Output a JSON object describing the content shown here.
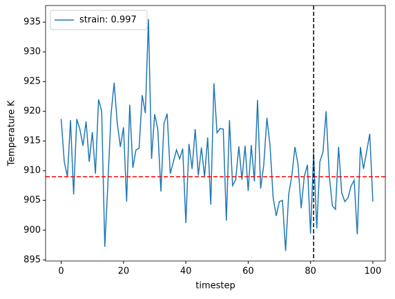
{
  "chart_data": {
    "type": "line",
    "x_label": "timestep",
    "y_label": "Temperature K",
    "x": [
      0,
      1,
      2,
      3,
      4,
      5,
      6,
      7,
      8,
      9,
      10,
      11,
      12,
      13,
      14,
      15,
      16,
      17,
      18,
      19,
      20,
      21,
      22,
      23,
      24,
      25,
      26,
      27,
      28,
      29,
      30,
      31,
      32,
      33,
      34,
      35,
      36,
      37,
      38,
      39,
      40,
      41,
      42,
      43,
      44,
      45,
      46,
      47,
      48,
      49,
      50,
      51,
      52,
      53,
      54,
      55,
      56,
      57,
      58,
      59,
      60,
      61,
      62,
      63,
      64,
      65,
      66,
      67,
      68,
      69,
      70,
      71,
      72,
      73,
      74,
      75,
      76,
      77,
      78,
      79,
      80,
      81,
      82,
      83,
      84,
      85,
      86,
      87,
      88,
      89,
      90,
      91,
      92,
      93,
      94,
      95,
      96,
      97,
      98,
      99,
      100
    ],
    "series": [
      {
        "name": "strain: 0.997",
        "color": "#1f77b4",
        "values": [
          918.7,
          911.5,
          909,
          918.5,
          906,
          918.7,
          917,
          914.2,
          918.3,
          911.5,
          916.5,
          909.5,
          922,
          920,
          897.2,
          908,
          919.5,
          924.8,
          918,
          914,
          917.3,
          904.8,
          921.1,
          910.5,
          913.5,
          913.8,
          922.7,
          919.7,
          935.5,
          912,
          919.5,
          917,
          906.5,
          918,
          919.6,
          909.5,
          911.5,
          913.5,
          912,
          913.7,
          901.2,
          914.5,
          910.3,
          917,
          909.2,
          913.9,
          909,
          915.6,
          904.3,
          924.7,
          916.4,
          917.1,
          917,
          901.6,
          918.5,
          907.5,
          908.5,
          914.1,
          908.5,
          914.2,
          906.6,
          914.3,
          908.2,
          921.9,
          907,
          911,
          918.9,
          914.3,
          905.5,
          902.4,
          904.8,
          905,
          896.5,
          906,
          909.2,
          914,
          911,
          903.7,
          909,
          911,
          899.4,
          913,
          900.3,
          911.5,
          913.2,
          920,
          909.3,
          904.1,
          903.5,
          914,
          906.3,
          904.8,
          905.4,
          907.4,
          908.4,
          899.3,
          914,
          910.3,
          913.2,
          916.2,
          904.8
        ]
      }
    ],
    "hline": {
      "value": 909,
      "color": "#ff0000"
    },
    "vline": {
      "value": 81,
      "color": "#000000"
    },
    "xlim": [
      -5,
      104
    ],
    "ylim": [
      894.8,
      937.8
    ],
    "xticks": [
      0,
      20,
      40,
      60,
      80,
      100
    ],
    "yticks": [
      895,
      900,
      905,
      910,
      915,
      920,
      925,
      930,
      935
    ],
    "legend": "upper left"
  }
}
